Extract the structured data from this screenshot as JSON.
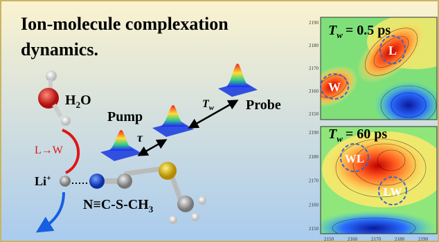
{
  "title": {
    "line1": "Ion-molecule complexation",
    "line2": "dynamics."
  },
  "molecules": {
    "water": {
      "main": "H",
      "sub": "2",
      "tail": "O"
    },
    "ion": {
      "main": "Li",
      "sup": "+"
    },
    "ligand": {
      "main": "N≡C-S-CH",
      "sub": "3"
    }
  },
  "transition": "L→W",
  "pulses": {
    "pump": "Pump",
    "delay": "τ",
    "waiting": {
      "main": "T",
      "sub": "w"
    },
    "probe": "Probe"
  },
  "panels": [
    {
      "label": {
        "main": "T",
        "sub": "w",
        "tail": "= 0.5 ps"
      },
      "peaks": [
        "L",
        "W"
      ],
      "yticks": [
        2190,
        2180,
        2170,
        2160,
        2150
      ]
    },
    {
      "label": {
        "main": "T",
        "sub": "w",
        "tail": "= 60 ps"
      },
      "peaks": [
        "WL",
        "LW"
      ],
      "yticks": [
        2190,
        2180,
        2170,
        2160,
        2150
      ]
    }
  ],
  "xticks": [
    2150,
    2160,
    2170,
    2180,
    2190
  ]
}
